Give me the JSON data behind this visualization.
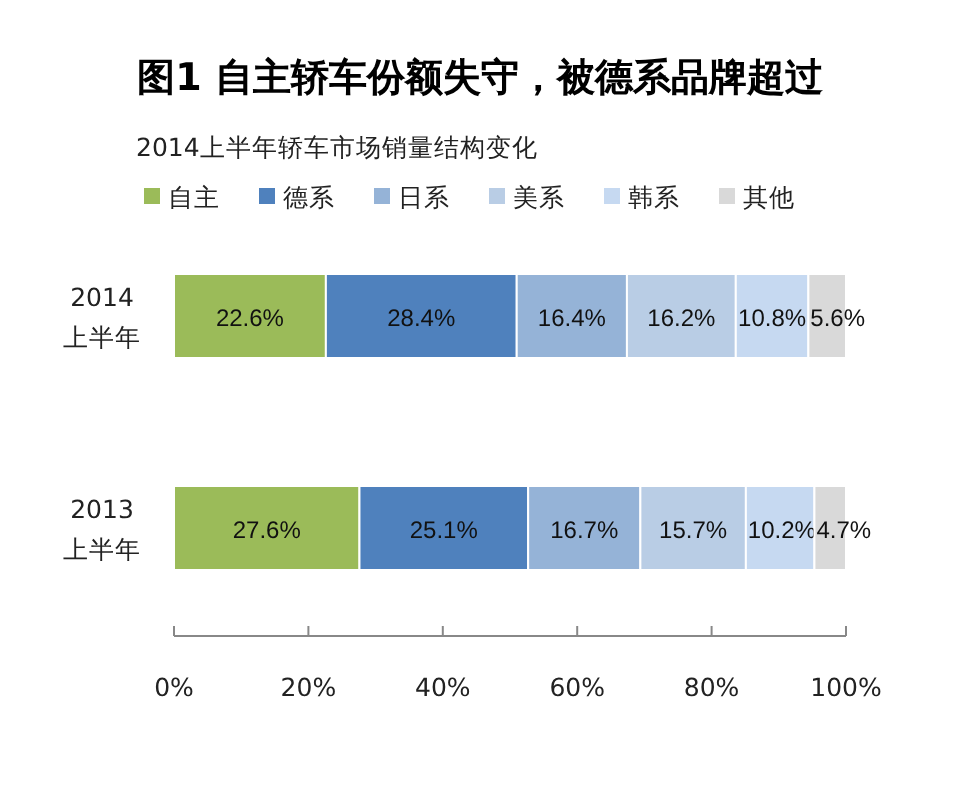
{
  "chart_data": {
    "type": "bar",
    "orientation": "horizontal",
    "stacked": true,
    "title": "图1  自主轿车份额失守，被德系品牌超过",
    "subtitle": "2014上半年轿车市场销量结构变化",
    "categories": [
      "2014 上半年",
      "2013 上半年"
    ],
    "series": [
      {
        "name": "自主",
        "color": "#9bbb59",
        "values": [
          22.6,
          27.6
        ],
        "value_labels": [
          "22.6%",
          "27.6%"
        ]
      },
      {
        "name": "德系",
        "color": "#4f81bd",
        "values": [
          28.4,
          25.1
        ],
        "value_labels": [
          "28.4%",
          "25.1%"
        ]
      },
      {
        "name": "日系",
        "color": "#95b3d7",
        "values": [
          16.4,
          16.7
        ],
        "value_labels": [
          "16.4%",
          "16.7%"
        ]
      },
      {
        "name": "美系",
        "color": "#b9cde5",
        "values": [
          16.2,
          15.7
        ],
        "value_labels": [
          "16.2%",
          "15.7%"
        ]
      },
      {
        "name": "韩系",
        "color": "#c6d9f1",
        "values": [
          10.8,
          10.2
        ],
        "value_labels": [
          "10.8%",
          "10.2%"
        ]
      },
      {
        "name": "其他",
        "color": "#d9d9d9",
        "values": [
          5.6,
          4.7
        ],
        "value_labels": [
          "5.6%",
          "4.7%"
        ]
      }
    ],
    "xlim": [
      0,
      100
    ],
    "xticks": [
      {
        "value": 0,
        "label": "0%"
      },
      {
        "value": 20,
        "label": "20%"
      },
      {
        "value": 40,
        "label": "40%"
      },
      {
        "value": 60,
        "label": "60%"
      },
      {
        "value": 80,
        "label": "80%"
      },
      {
        "value": 100,
        "label": "100%"
      }
    ],
    "legend": "top"
  }
}
